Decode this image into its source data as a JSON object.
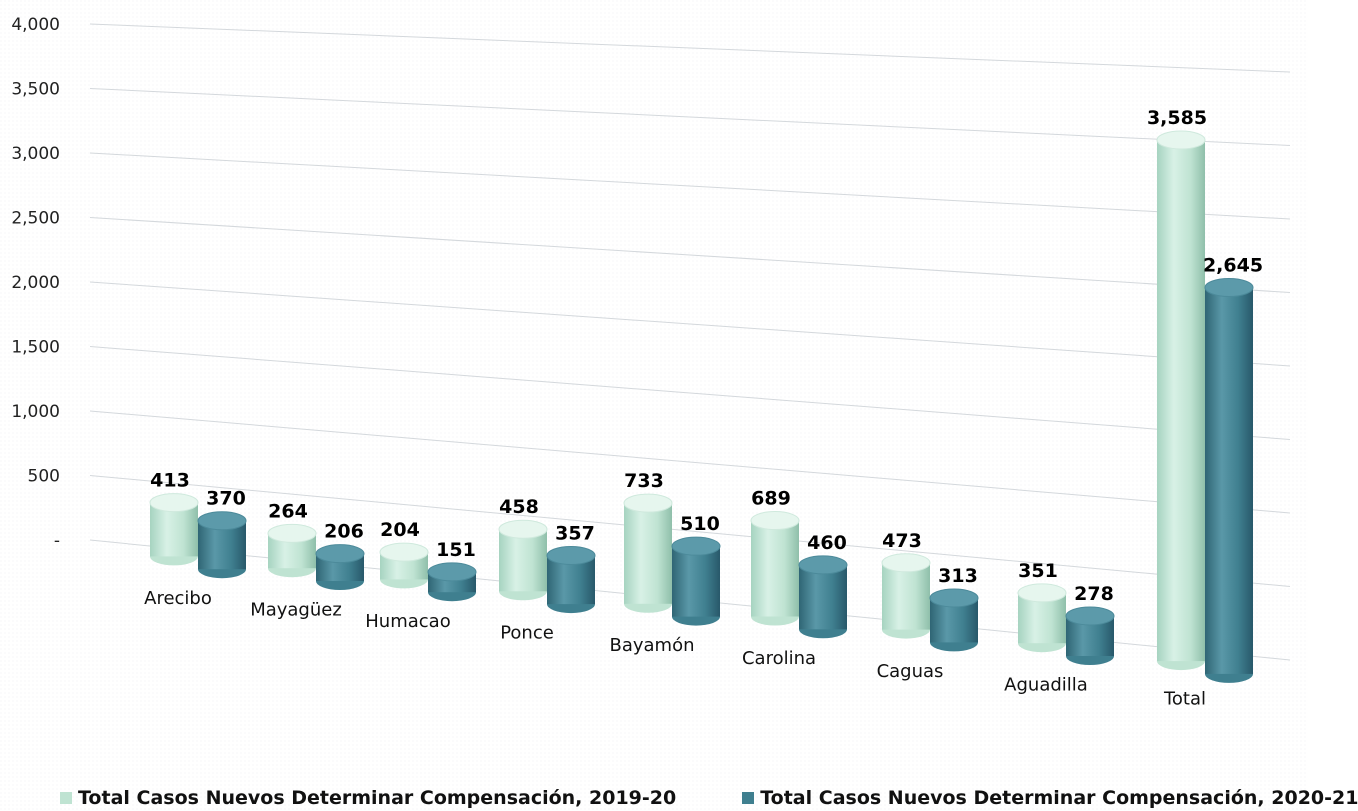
{
  "chart_data": {
    "type": "bar",
    "categories": [
      "Arecibo",
      "Mayagüez",
      "Humacao",
      "Ponce",
      "Bayamón",
      "Carolina",
      "Caguas",
      "Aguadilla",
      "Total"
    ],
    "series": [
      {
        "name": "Total Casos Nuevos Determinar Compensación, 2019-20",
        "values": [
          413,
          264,
          204,
          458,
          733,
          689,
          473,
          351,
          3585
        ],
        "labels": [
          "413",
          "264",
          "204",
          "458",
          "733",
          "689",
          "473",
          "351",
          "3,585"
        ],
        "color": "#bfe3d2"
      },
      {
        "name": "Total Casos Nuevos Determinar Compensación, 2020-21",
        "values": [
          370,
          206,
          151,
          357,
          510,
          460,
          313,
          278,
          2645
        ],
        "labels": [
          "370",
          "206",
          "151",
          "357",
          "510",
          "460",
          "313",
          "278",
          "2,645"
        ],
        "color": "#3f7f8f"
      }
    ],
    "ylim": [
      0,
      4000
    ],
    "y_ticks": [
      "-",
      "500",
      "1,000",
      "1,500",
      "2,000",
      "2,500",
      "3,000",
      "3,500",
      "4,000"
    ],
    "grid": true,
    "legend_position": "bottom"
  }
}
